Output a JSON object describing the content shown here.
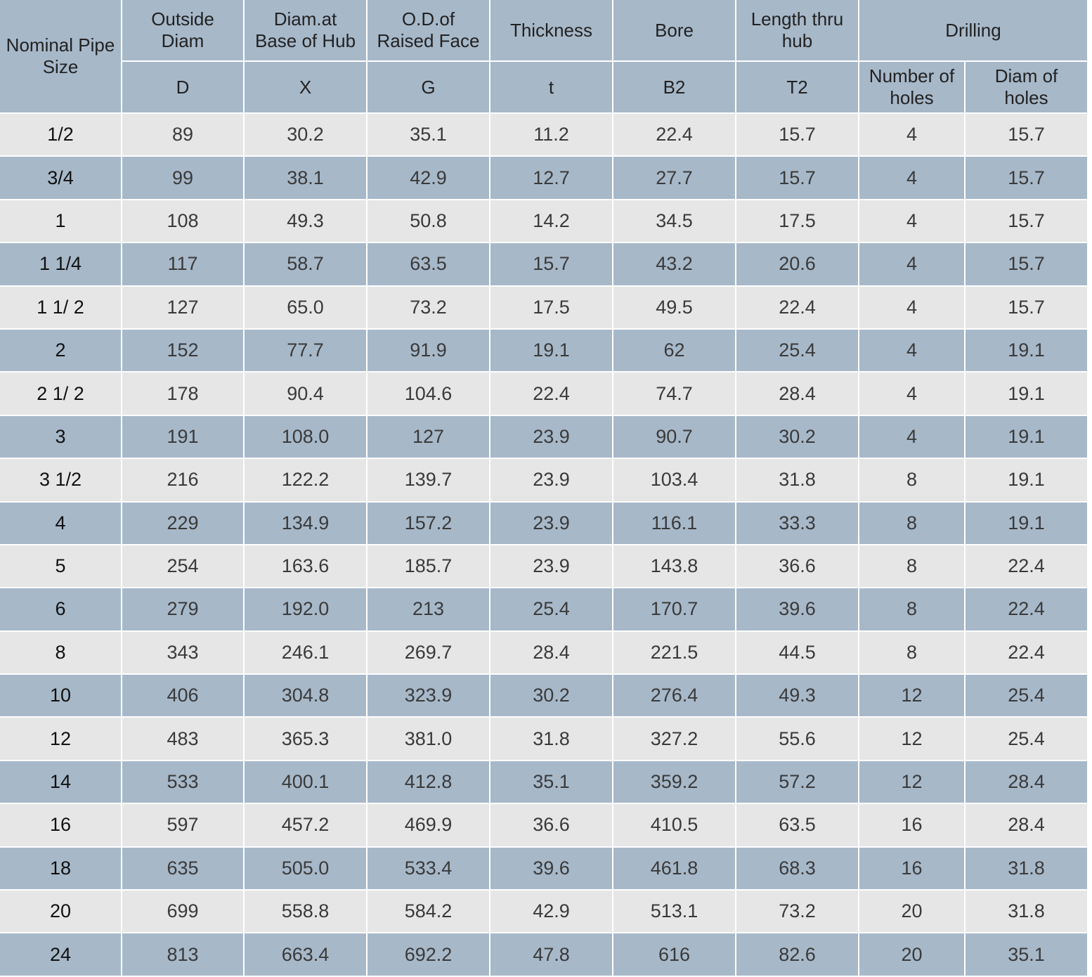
{
  "table": {
    "header": {
      "row1": [
        "Nominal Pipe Size",
        "Outside\nDiam",
        "Diam.at\nBase of Hub",
        "O.D.of\nRaised Face",
        "Thickness",
        "Bore",
        "Length  thru\nhub",
        "Drilling"
      ],
      "row2": [
        "D",
        "X",
        "G",
        "t",
        "B2",
        "T2",
        "Number of\nholes",
        "Diam of\nholes"
      ]
    },
    "rows": [
      [
        "1/2",
        "89",
        "30.2",
        "35.1",
        "11.2",
        "22.4",
        "15.7",
        "4",
        "15.7"
      ],
      [
        "3/4",
        "99",
        "38.1",
        "42.9",
        "12.7",
        "27.7",
        "15.7",
        "4",
        "15.7"
      ],
      [
        "1",
        "108",
        "49.3",
        "50.8",
        "14.2",
        "34.5",
        "17.5",
        "4",
        "15.7"
      ],
      [
        "1 1/4",
        "117",
        "58.7",
        "63.5",
        "15.7",
        "43.2",
        "20.6",
        "4",
        "15.7"
      ],
      [
        "1 1/ 2",
        "127",
        "65.0",
        "73.2",
        "17.5",
        "49.5",
        "22.4",
        "4",
        "15.7"
      ],
      [
        "2",
        "152",
        "77.7",
        "91.9",
        "19.1",
        "62",
        "25.4",
        "4",
        "19.1"
      ],
      [
        "2 1/ 2",
        "178",
        "90.4",
        "104.6",
        "22.4",
        "74.7",
        "28.4",
        "4",
        "19.1"
      ],
      [
        "3",
        "191",
        "108.0",
        "127",
        "23.9",
        "90.7",
        "30.2",
        "4",
        "19.1"
      ],
      [
        "3 1/2",
        "216",
        "122.2",
        "139.7",
        "23.9",
        "103.4",
        "31.8",
        "8",
        "19.1"
      ],
      [
        "4",
        "229",
        "134.9",
        "157.2",
        "23.9",
        "116.1",
        "33.3",
        "8",
        "19.1"
      ],
      [
        "5",
        "254",
        "163.6",
        "185.7",
        "23.9",
        "143.8",
        "36.6",
        "8",
        "22.4"
      ],
      [
        "6",
        "279",
        "192.0",
        "213",
        "25.4",
        "170.7",
        "39.6",
        "8",
        "22.4"
      ],
      [
        "8",
        "343",
        "246.1",
        "269.7",
        "28.4",
        "221.5",
        "44.5",
        "8",
        "22.4"
      ],
      [
        "10",
        "406",
        "304.8",
        "323.9",
        "30.2",
        "276.4",
        "49.3",
        "12",
        "25.4"
      ],
      [
        "12",
        "483",
        "365.3",
        "381.0",
        "31.8",
        "327.2",
        "55.6",
        "12",
        "25.4"
      ],
      [
        "14",
        "533",
        "400.1",
        "412.8",
        "35.1",
        "359.2",
        "57.2",
        "12",
        "28.4"
      ],
      [
        "16",
        "597",
        "457.2",
        "469.9",
        "36.6",
        "410.5",
        "63.5",
        "16",
        "28.4"
      ],
      [
        "18",
        "635",
        "505.0",
        "533.4",
        "39.6",
        "461.8",
        "68.3",
        "16",
        "31.8"
      ],
      [
        "20",
        "699",
        "558.8",
        "584.2",
        "42.9",
        "513.1",
        "73.2",
        "20",
        "31.8"
      ],
      [
        "24",
        "813",
        "663.4",
        "692.2",
        "47.8",
        "616",
        "82.6",
        "20",
        "35.1"
      ]
    ]
  }
}
